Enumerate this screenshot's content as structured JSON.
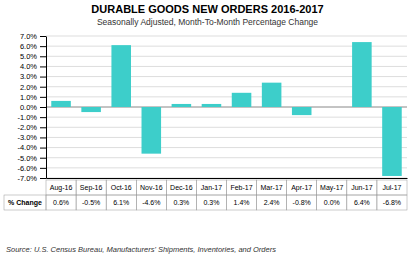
{
  "chart_data": {
    "type": "bar",
    "title": "DURABLE GOODS NEW ORDERS 2016-2017",
    "subtitle": "Seasonally Adjusted,  Month-To-Month  Percentage Change",
    "categories": [
      "Aug-16",
      "Sep-16",
      "Oct-16",
      "Nov-16",
      "Dec-16",
      "Jan-17",
      "Feb-17",
      "Mar-17",
      "Apr-17",
      "May-17",
      "Jun-17",
      "Jul-17"
    ],
    "values": [
      0.6,
      -0.5,
      6.1,
      -4.6,
      0.3,
      0.3,
      1.4,
      2.4,
      -0.8,
      0.0,
      6.4,
      -6.8
    ],
    "value_labels": [
      "0.6%",
      "-0.5%",
      "6.1%",
      "-4.6%",
      "0.3%",
      "0.3%",
      "1.4%",
      "2.4%",
      "-0.8%",
      "0.0%",
      "6.4%",
      "-6.8%"
    ],
    "color": "#3DCECA",
    "ylim": [
      -7.0,
      7.0
    ],
    "yticks": [
      {
        "value": -7.0,
        "label": "-7.0%"
      },
      {
        "value": -6.0,
        "label": "-6.0%"
      },
      {
        "value": -5.0,
        "label": "-5.0%"
      },
      {
        "value": -4.0,
        "label": "-4.0%"
      },
      {
        "value": -3.0,
        "label": "-3.0%"
      },
      {
        "value": -2.0,
        "label": "-2.0%"
      },
      {
        "value": -1.0,
        "label": "-1.0%"
      },
      {
        "value": 0.0,
        "label": "0.0%"
      },
      {
        "value": 1.0,
        "label": "1.0%"
      },
      {
        "value": 2.0,
        "label": "2.0%"
      },
      {
        "value": 3.0,
        "label": "3.0%"
      },
      {
        "value": 4.0,
        "label": "4.0%"
      },
      {
        "value": 5.0,
        "label": "5.0%"
      },
      {
        "value": 6.0,
        "label": "6.0%"
      },
      {
        "value": 7.0,
        "label": "7.0%"
      }
    ],
    "grid": true,
    "annotations": [
      "% Change",
      "Source: U.S. Census Bureau, Manufacturers' Shipments, Inventories, and Orders"
    ]
  }
}
